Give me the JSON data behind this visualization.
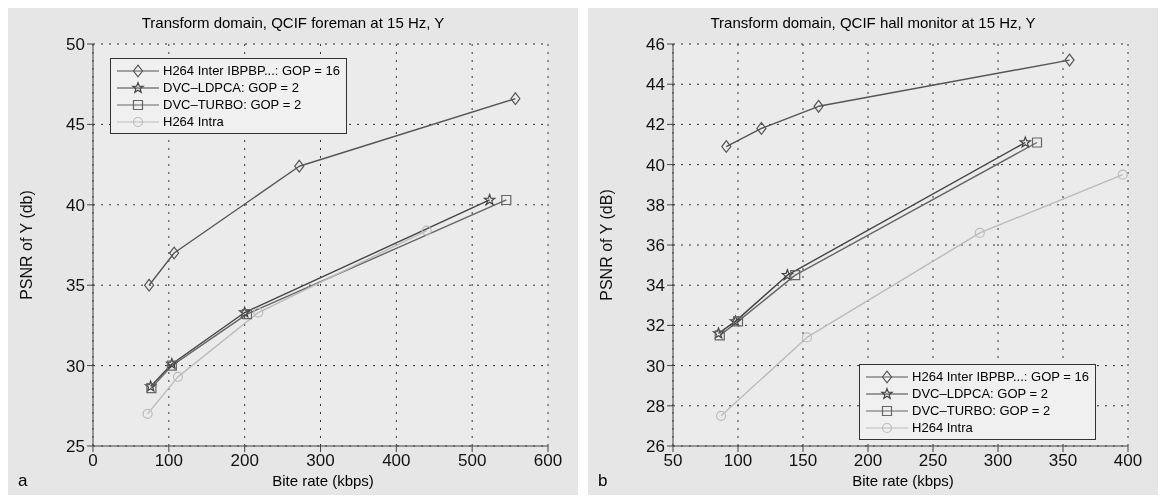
{
  "chart_data": [
    {
      "type": "line",
      "title": "Transform domain, QCIF foreman at 15 Hz, Y",
      "xlabel": "Bite rate (kbps)",
      "ylabel": "PSNR of Y (db)",
      "annotations": [
        "a"
      ],
      "xlim": [
        0,
        600
      ],
      "xticks": [
        0,
        100,
        200,
        300,
        400,
        500,
        600
      ],
      "ylim": [
        25,
        50
      ],
      "yticks": [
        25,
        30,
        35,
        40,
        45,
        50
      ],
      "grid": true,
      "legend": "top left",
      "line_style": "solid",
      "series": [
        {
          "name": "H264 Inter IBPBP...: GOP = 16",
          "color": "#555555",
          "marker": "diamond",
          "x": [
            74,
            107,
            272,
            557
          ],
          "values": [
            35,
            37,
            42.4,
            46.6
          ]
        },
        {
          "name": "DVC–LDPCA: GOP = 2",
          "color": "#444444",
          "marker": "star",
          "x": [
            76,
            104,
            200,
            523
          ],
          "values": [
            28.7,
            30.1,
            33.3,
            40.3
          ]
        },
        {
          "name": "DVC–TURBO: GOP = 2",
          "color": "#666666",
          "marker": "square",
          "x": [
            77,
            104,
            203,
            545
          ],
          "values": [
            28.6,
            30,
            33.2,
            40.3
          ]
        },
        {
          "name": "H264 Intra",
          "color": "#bbbbbb",
          "marker": "circle",
          "x": [
            72,
            112,
            218,
            440
          ],
          "values": [
            27,
            29.3,
            33.3,
            38.4
          ]
        }
      ]
    },
    {
      "type": "line",
      "title": "Transform domain, QCIF hall monitor at 15 Hz, Y",
      "xlabel": "Bite rate (kbps)",
      "ylabel": "PSNR of Y (dB)",
      "annotations": [
        "b"
      ],
      "xlim": [
        50,
        400
      ],
      "xticks": [
        50,
        100,
        150,
        200,
        250,
        300,
        350,
        400
      ],
      "ylim": [
        26,
        46
      ],
      "yticks": [
        26,
        28,
        30,
        32,
        34,
        36,
        38,
        40,
        42,
        44,
        46
      ],
      "grid": true,
      "legend": "bottom right",
      "line_style": "solid",
      "series": [
        {
          "name": "H264 Inter IBPBP...: GOP = 16",
          "color": "#555555",
          "marker": "diamond",
          "x": [
            91,
            118,
            162,
            355
          ],
          "values": [
            40.9,
            41.8,
            42.9,
            45.2
          ]
        },
        {
          "name": "DVC–LDPCA: GOP = 2",
          "color": "#444444",
          "marker": "star",
          "x": [
            85,
            98,
            138,
            321
          ],
          "values": [
            31.6,
            32.2,
            34.5,
            41.1
          ]
        },
        {
          "name": "DVC–TURBO: GOP = 2",
          "color": "#666666",
          "marker": "square",
          "x": [
            86,
            100,
            144,
            330
          ],
          "values": [
            31.5,
            32.2,
            34.5,
            41.1
          ]
        },
        {
          "name": "H264 Intra",
          "color": "#bbbbbb",
          "marker": "circle",
          "x": [
            87,
            153,
            286,
            396
          ],
          "values": [
            27.5,
            31.4,
            36.6,
            39.5
          ]
        }
      ]
    }
  ]
}
